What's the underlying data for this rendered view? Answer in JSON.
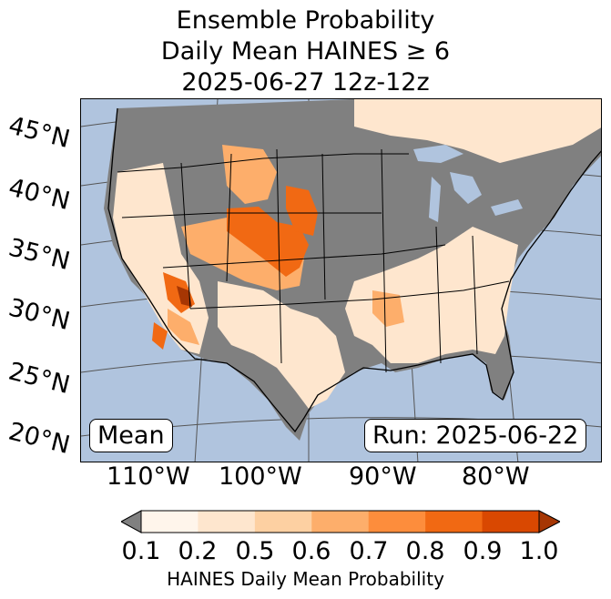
{
  "title": {
    "line1": "Ensemble Probability",
    "line2": "Daily Mean HAINES ≥ 6",
    "line3": "2025-06-27 12z-12z"
  },
  "map": {
    "lat_labels": [
      "45°N",
      "40°N",
      "35°N",
      "30°N",
      "25°N",
      "20°N"
    ],
    "lon_labels": [
      "110°W",
      "100°W",
      "90°W",
      "80°W"
    ],
    "mean_label": "Mean",
    "run_label": "Run: 2025-06-22",
    "colors": {
      "ocean": "#b0c4de",
      "below_threshold": "#808080",
      "land_low": "#fff3e6"
    }
  },
  "colorbar": {
    "ticks": [
      "0.1",
      "0.2",
      "0.5",
      "0.6",
      "0.7",
      "0.8",
      "0.9",
      "1.0"
    ],
    "colors": [
      "#fff5eb",
      "#fee6ce",
      "#fdd0a2",
      "#fdae6b",
      "#fd8d3c",
      "#f16913",
      "#d94801",
      "#a63603"
    ],
    "under_color": "#808080",
    "label": "HAINES Daily Mean Probability"
  }
}
